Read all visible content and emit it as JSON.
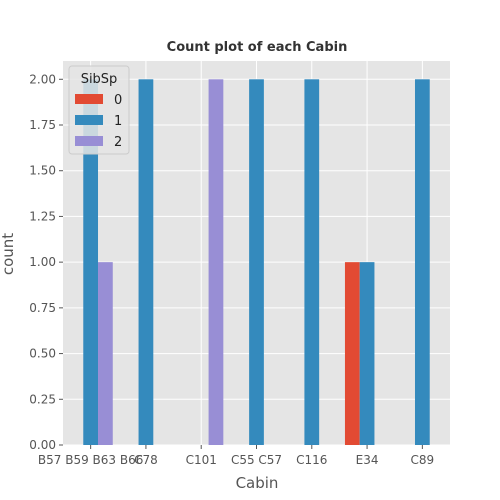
{
  "chart_data": {
    "type": "bar",
    "title": "Count plot of each Cabin",
    "xlabel": "Cabin",
    "ylabel": "count",
    "categories": [
      "B57 B59 B63 B66",
      "C78",
      "C101",
      "C55 C57",
      "C116",
      "E34",
      "C89"
    ],
    "legend_title": "SibSp",
    "legend_position": "top-left",
    "series": [
      {
        "name": "0",
        "color": "#E24A33",
        "values": [
          0,
          0,
          0,
          0,
          0,
          1,
          0
        ]
      },
      {
        "name": "1",
        "color": "#348ABD",
        "values": [
          2,
          2,
          0,
          2,
          2,
          1,
          2
        ]
      },
      {
        "name": "2",
        "color": "#988ED5",
        "values": [
          1,
          0,
          2,
          0,
          0,
          0,
          0
        ]
      }
    ],
    "ylim": [
      0,
      2.1
    ],
    "yticks": [
      "0.00",
      "0.25",
      "0.50",
      "0.75",
      "1.00",
      "1.25",
      "1.50",
      "1.75",
      "2.00"
    ],
    "grid": true,
    "background": "#E5E5E5"
  }
}
